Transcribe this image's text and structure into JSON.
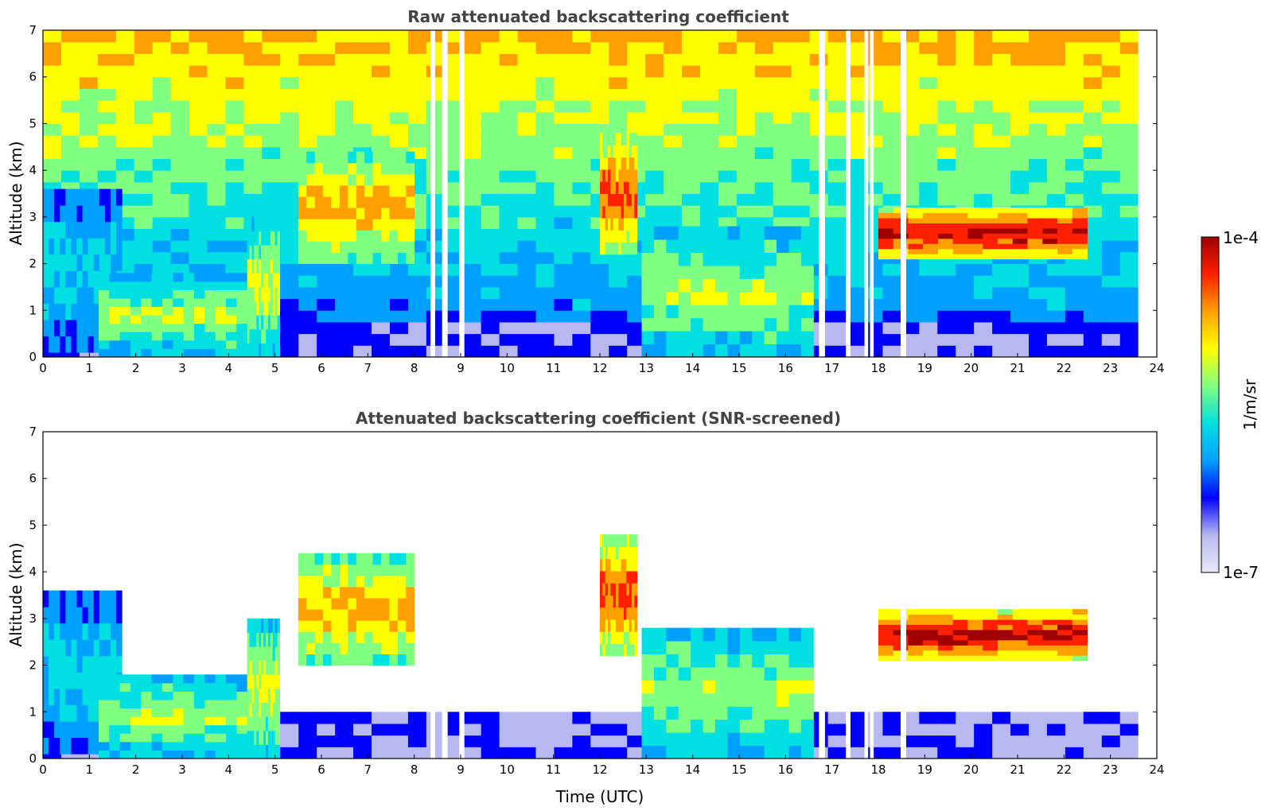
{
  "chart_data": [
    {
      "type": "heatmap",
      "title": "Raw attenuated backscattering coefficient",
      "xlabel": "",
      "ylabel": "Altitude (km)",
      "xlim": [
        0,
        24
      ],
      "ylim": [
        0,
        7
      ],
      "xticks": [
        "0",
        "1",
        "2",
        "3",
        "4",
        "5",
        "6",
        "7",
        "8",
        "9",
        "10",
        "11",
        "12",
        "13",
        "14",
        "15",
        "16",
        "17",
        "18",
        "19",
        "20",
        "21",
        "22",
        "23",
        "24"
      ],
      "yticks": [
        "0",
        "1",
        "2",
        "3",
        "4",
        "5",
        "6",
        "7"
      ],
      "data_end_time": 23.6,
      "noise": true,
      "gaps": [
        [
          8.35,
          8.45
        ],
        [
          8.6,
          8.72
        ],
        [
          8.97,
          9.08
        ],
        [
          16.72,
          16.85
        ],
        [
          17.3,
          17.4
        ],
        [
          17.7,
          17.78
        ],
        [
          17.82,
          17.9
        ],
        [
          18.48,
          18.6
        ]
      ],
      "layers": [
        {
          "name": "boundary-layer-plume-morning",
          "t0": 0.0,
          "t1": 1.7,
          "base": 0.1,
          "top": 3.6,
          "level": 0.45
        },
        {
          "name": "descending-aerosol-layer",
          "t0": 1.2,
          "t1": 4.4,
          "base": 0.0,
          "top": 1.8,
          "level": 0.6
        },
        {
          "name": "rising-convective-plume",
          "t0": 4.4,
          "t1": 5.1,
          "base": 0.0,
          "top": 3.0,
          "level": 0.65
        },
        {
          "name": "elevated-layer-evening",
          "t0": 5.5,
          "t1": 8.0,
          "base": 2.0,
          "top": 4.4,
          "level": 0.75
        },
        {
          "name": "elevated-layer-noon",
          "t0": 12.0,
          "t1": 12.8,
          "base": 2.2,
          "top": 4.8,
          "level": 0.85
        },
        {
          "name": "surface-layer-afternoon",
          "t0": 12.9,
          "t1": 16.6,
          "base": 0.0,
          "top": 2.8,
          "level": 0.6
        },
        {
          "name": "cloud-layer-night",
          "t0": 18.0,
          "t1": 22.5,
          "base": 2.1,
          "top": 3.2,
          "level": 0.95
        }
      ]
    },
    {
      "type": "heatmap",
      "title": "Attenuated backscattering coefficient (SNR-screened)",
      "xlabel": "Time (UTC)",
      "ylabel": "Altitude (km)",
      "xlim": [
        0,
        24
      ],
      "ylim": [
        0,
        7
      ],
      "xticks": [
        "0",
        "1",
        "2",
        "3",
        "4",
        "5",
        "6",
        "7",
        "8",
        "9",
        "10",
        "11",
        "12",
        "13",
        "14",
        "15",
        "16",
        "17",
        "18",
        "19",
        "20",
        "21",
        "22",
        "23",
        "24"
      ],
      "yticks": [
        "0",
        "1",
        "2",
        "3",
        "4",
        "5",
        "6",
        "7"
      ],
      "data_end_time": 23.6,
      "noise": false,
      "gaps": [
        [
          8.35,
          8.45
        ],
        [
          8.6,
          8.72
        ],
        [
          8.97,
          9.08
        ],
        [
          16.72,
          16.85
        ],
        [
          17.3,
          17.4
        ],
        [
          17.7,
          17.78
        ],
        [
          17.82,
          17.9
        ],
        [
          18.48,
          18.6
        ]
      ],
      "layers": [
        {
          "name": "boundary-layer-plume-morning",
          "t0": 0.0,
          "t1": 1.7,
          "base": 0.1,
          "top": 3.6,
          "level": 0.45
        },
        {
          "name": "descending-aerosol-layer",
          "t0": 1.2,
          "t1": 4.4,
          "base": 0.0,
          "top": 1.8,
          "level": 0.6
        },
        {
          "name": "rising-convective-plume",
          "t0": 4.4,
          "t1": 5.1,
          "base": 0.0,
          "top": 3.0,
          "level": 0.65
        },
        {
          "name": "elevated-layer-evening",
          "t0": 5.5,
          "t1": 8.0,
          "base": 2.0,
          "top": 4.4,
          "level": 0.75
        },
        {
          "name": "elevated-layer-noon",
          "t0": 12.0,
          "t1": 12.8,
          "base": 2.2,
          "top": 4.8,
          "level": 0.85
        },
        {
          "name": "surface-layer-afternoon",
          "t0": 12.9,
          "t1": 16.6,
          "base": 0.0,
          "top": 2.8,
          "level": 0.6
        },
        {
          "name": "cloud-layer-night",
          "t0": 18.0,
          "t1": 22.5,
          "base": 2.1,
          "top": 3.2,
          "level": 0.95
        }
      ]
    }
  ],
  "colorbar": {
    "max_label": "1e-4",
    "min_label": "1e-7",
    "unit_label": "1/m/sr",
    "colors": [
      "#e8e8f8",
      "#b8b8f0",
      "#0000ff",
      "#00a0ff",
      "#00e0e0",
      "#80ff80",
      "#ffff00",
      "#ffa000",
      "#ff2000",
      "#a00000"
    ]
  }
}
